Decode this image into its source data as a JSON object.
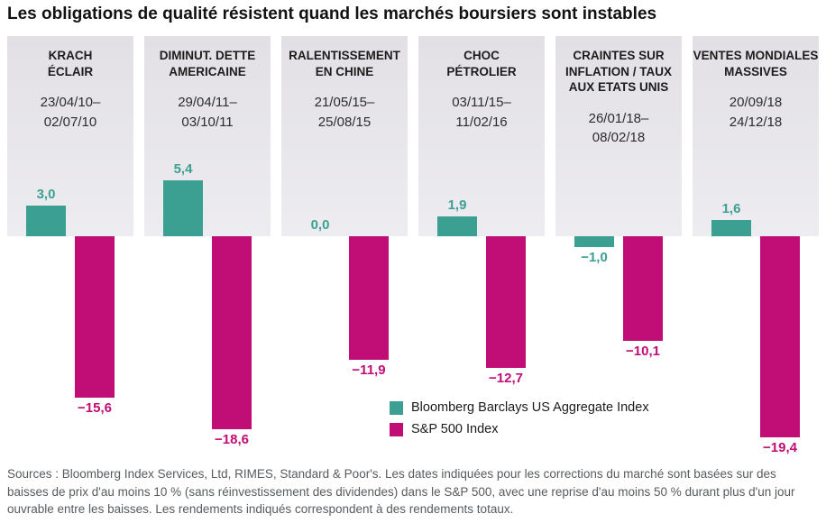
{
  "title": "Les obligations de qualité résistent quand les marchés boursiers sont instables",
  "chart_data": {
    "type": "bar",
    "title": "Les obligations de qualité résistent quand les marchés boursiers sont instables",
    "ylim": [
      -20,
      6
    ],
    "grid": false,
    "legend_position": "bottom-center",
    "series": [
      {
        "name": "Bloomberg Barclays US Aggregate Index",
        "color": "#3ba092"
      },
      {
        "name": "S&P 500 Index",
        "color": "#c10d76"
      }
    ],
    "events": [
      {
        "name_lines": [
          "KRACH",
          "ÉCLAIR"
        ],
        "date_lines": [
          "23/04/10–",
          "02/07/10"
        ],
        "values": [
          3.0,
          -15.6
        ],
        "labels": [
          "3,0",
          "−15,6"
        ]
      },
      {
        "name_lines": [
          "DIMINUT. DETTE",
          "AMERICAINE"
        ],
        "date_lines": [
          "29/04/11–",
          "03/10/11"
        ],
        "values": [
          5.4,
          -18.6
        ],
        "labels": [
          "5,4",
          "−18,6"
        ]
      },
      {
        "name_lines": [
          "RALENTISSEMENT",
          "EN CHINE"
        ],
        "date_lines": [
          "21/05/15–",
          "25/08/15"
        ],
        "values": [
          0.0,
          -11.9
        ],
        "labels": [
          "0,0",
          "−11,9"
        ]
      },
      {
        "name_lines": [
          "CHOC",
          "PÉTROLIER"
        ],
        "date_lines": [
          "03/11/15–",
          "11/02/16"
        ],
        "values": [
          1.9,
          -12.7
        ],
        "labels": [
          "1,9",
          "−12,7"
        ]
      },
      {
        "name_lines": [
          "CRAINTES SUR",
          "INFLATION / TAUX",
          "AUX ETATS UNIS"
        ],
        "date_lines": [
          "26/01/18–",
          "08/02/18"
        ],
        "values": [
          -1.0,
          -10.1
        ],
        "labels": [
          "−1,0",
          "−10,1"
        ]
      },
      {
        "name_lines": [
          "VENTES MONDIALES",
          "MASSIVES"
        ],
        "date_lines": [
          "20/09/18",
          "24/12/18"
        ],
        "values": [
          1.6,
          -19.4
        ],
        "labels": [
          "1,6",
          "−19,4"
        ]
      }
    ]
  },
  "footer": {
    "text": "Sources : Bloomberg Index Services, Ltd, RIMES, Standard & Poor's. Les dates indiquées pour les corrections du marché sont basées sur des baisses de prix d'au moins 10 % (sans réinvestissement des dividendes) dans le S&P 500, avec une reprise d'au moins 50 % durant plus d'un jour ouvrable entre les baisses. Les rendements indiqués correspondent à des rendements totaux."
  }
}
